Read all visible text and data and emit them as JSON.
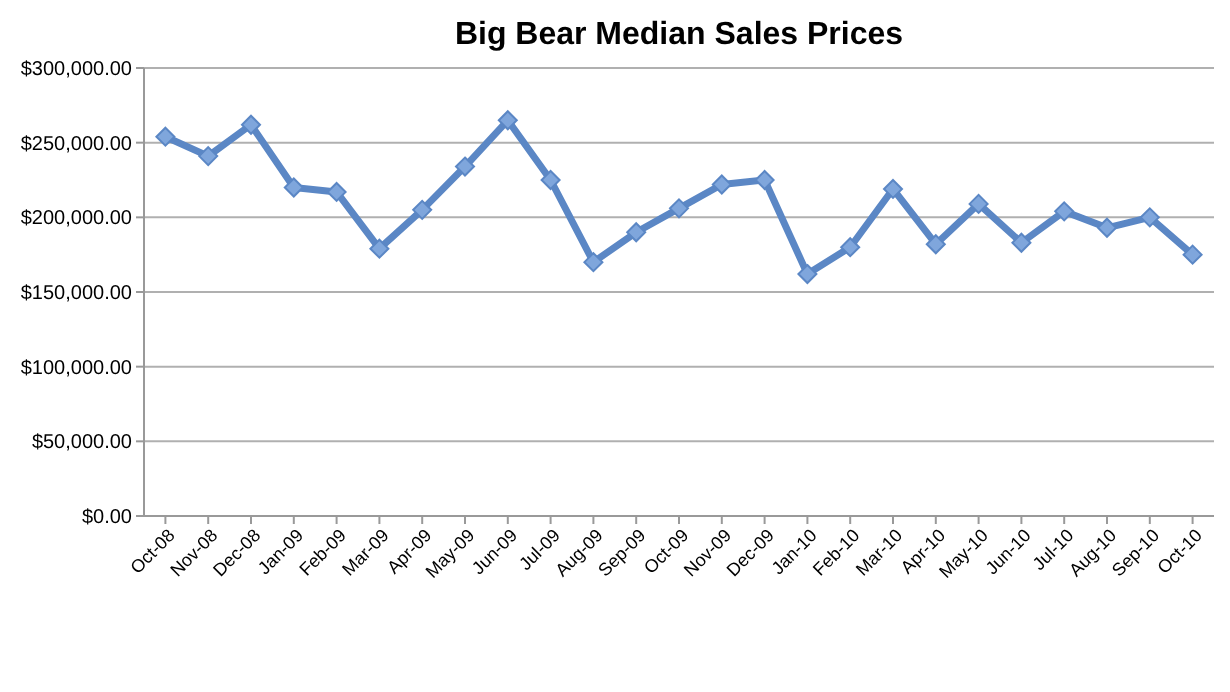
{
  "chart_data": {
    "type": "line",
    "title": "Big Bear Median Sales Prices",
    "categories": [
      "Oct-08",
      "Nov-08",
      "Dec-08",
      "Jan-09",
      "Feb-09",
      "Mar-09",
      "Apr-09",
      "May-09",
      "Jun-09",
      "Jul-09",
      "Aug-09",
      "Sep-09",
      "Oct-09",
      "Nov-09",
      "Dec-09",
      "Jan-10",
      "Feb-10",
      "Mar-10",
      "Apr-10",
      "May-10",
      "Jun-10",
      "Jul-10",
      "Aug-10",
      "Sep-10",
      "Oct-10"
    ],
    "series": [
      {
        "color": "#5b87c5",
        "values": [
          254000,
          241000,
          262000,
          220000,
          217000,
          179000,
          205000,
          234000,
          265000,
          225000,
          170000,
          190000,
          206000,
          222000,
          225000,
          162000,
          180000,
          219000,
          182000,
          209000,
          183000,
          204000,
          193000,
          200000,
          175000
        ]
      }
    ],
    "ylim": [
      0,
      300000
    ],
    "yticks": [
      {
        "value": 0,
        "label": "$0.00"
      },
      {
        "value": 50000,
        "label": "$50,000.00"
      },
      {
        "value": 100000,
        "label": "$100,000.00"
      },
      {
        "value": 150000,
        "label": "$150,000.00"
      },
      {
        "value": 200000,
        "label": "$200,000.00"
      },
      {
        "value": 250000,
        "label": "$250,000.00"
      },
      {
        "value": 300000,
        "label": "$300,000.00"
      }
    ],
    "grid": "y",
    "marker": "diamond",
    "line_style": "solid"
  }
}
